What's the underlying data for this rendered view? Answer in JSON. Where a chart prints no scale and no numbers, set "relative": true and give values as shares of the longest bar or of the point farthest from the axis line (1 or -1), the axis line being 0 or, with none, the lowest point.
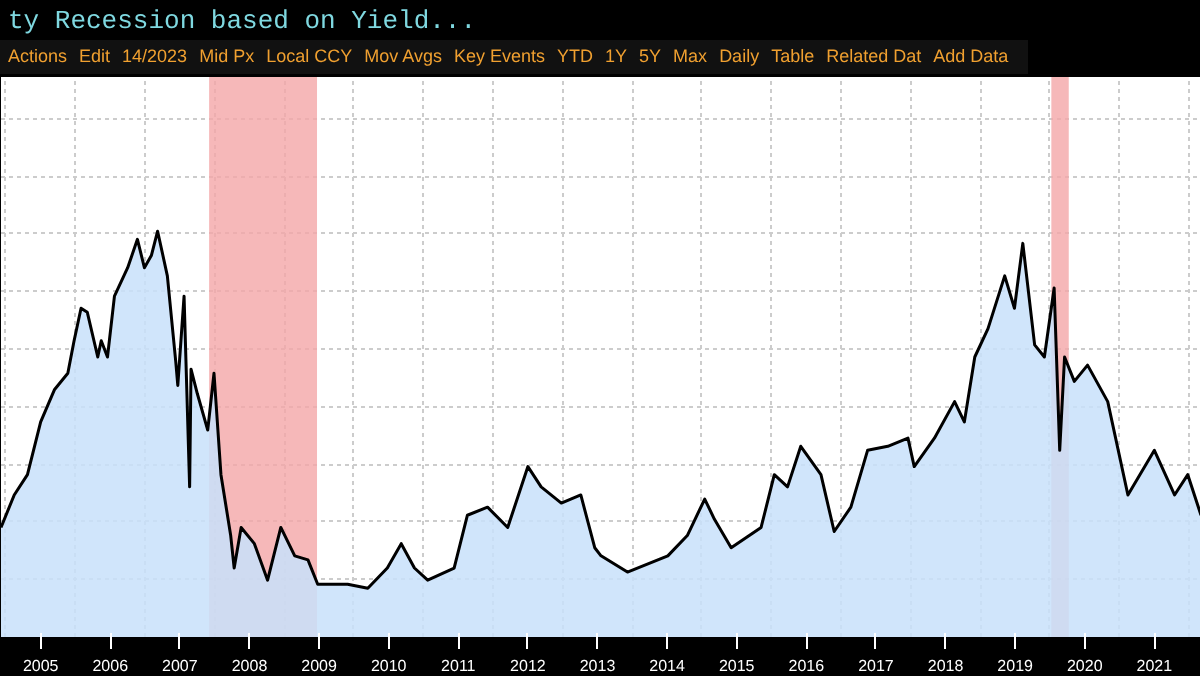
{
  "chart_data": {
    "type": "area",
    "title": "ty Recession based on Yield...",
    "relative": true,
    "annotations": [
      "Actions",
      "Edit",
      "14/2023",
      "Mid Px",
      "Local CCY",
      "Mov Avgs",
      "Key Events",
      "YTD",
      "1Y",
      "5Y",
      "Max",
      "Daily",
      "Table",
      "Related Dat",
      "Add Data"
    ],
    "xlim": [
      2004.93,
      2022.17
    ],
    "xticks": [
      {
        "value": 2005.5,
        "label": "2005"
      },
      {
        "value": 2006.5,
        "label": "2006"
      },
      {
        "value": 2007.5,
        "label": "2007"
      },
      {
        "value": 2008.5,
        "label": "2008"
      },
      {
        "value": 2009.5,
        "label": "2009"
      },
      {
        "value": 2010.5,
        "label": "2010"
      },
      {
        "value": 2011.5,
        "label": "2011"
      },
      {
        "value": 2012.5,
        "label": "2012"
      },
      {
        "value": 2013.5,
        "label": "2013"
      },
      {
        "value": 2014.5,
        "label": "2014"
      },
      {
        "value": 2015.5,
        "label": "2015"
      },
      {
        "value": 2016.5,
        "label": "2016"
      },
      {
        "value": 2017.5,
        "label": "2017"
      },
      {
        "value": 2018.5,
        "label": "2018"
      },
      {
        "value": 2019.5,
        "label": "2019"
      },
      {
        "value": 2020.5,
        "label": "2020"
      },
      {
        "value": 2021.5,
        "label": "2021"
      }
    ],
    "grid": true,
    "bands": [
      {
        "axis": "x",
        "from": 2007.92,
        "to": 2009.47,
        "color": "#f4a6a8"
      },
      {
        "axis": "x",
        "from": 2020.02,
        "to": 2020.27,
        "color": "#f4a6a8"
      }
    ],
    "series": [
      {
        "color": "#c8e1fa",
        "x": [
          2004.93,
          2005.12,
          2005.31,
          2005.5,
          2005.7,
          2005.89,
          2005.98,
          2006.08,
          2006.17,
          2006.32,
          2006.37,
          2006.46,
          2006.56,
          2006.75,
          2006.89,
          2006.99,
          2007.09,
          2007.18,
          2007.32,
          2007.44,
          2007.47,
          2007.56,
          2007.64,
          2007.66,
          2007.75,
          2007.9,
          2007.99,
          2008.09,
          2008.23,
          2008.28,
          2008.38,
          2008.57,
          2008.76,
          2008.95,
          2009.15,
          2009.34,
          2009.48,
          2009.91,
          2010.2,
          2010.48,
          2010.68,
          2010.87,
          2011.06,
          2011.44,
          2011.63,
          2011.92,
          2012.21,
          2012.5,
          2012.69,
          2012.98,
          2013.26,
          2013.46,
          2013.55,
          2013.93,
          2014.51,
          2014.79,
          2015.04,
          2015.18,
          2015.42,
          2015.85,
          2016.04,
          2016.23,
          2016.42,
          2016.71,
          2016.9,
          2017.14,
          2017.38,
          2017.67,
          2017.96,
          2018.05,
          2018.34,
          2018.63,
          2018.77,
          2018.92,
          2019.11,
          2019.35,
          2019.49,
          2019.61,
          2019.78,
          2019.92,
          2020.06,
          2020.14,
          2020.21,
          2020.35,
          2020.54,
          2020.83,
          2021.12,
          2021.5,
          2021.79,
          2021.98,
          2022.17
        ],
        "values": [
          0.27,
          0.35,
          0.4,
          0.53,
          0.61,
          0.65,
          0.73,
          0.81,
          0.8,
          0.69,
          0.73,
          0.69,
          0.84,
          0.91,
          0.98,
          0.91,
          0.94,
          1.0,
          0.89,
          0.68,
          0.62,
          0.84,
          0.37,
          0.66,
          0.6,
          0.51,
          0.65,
          0.4,
          0.25,
          0.17,
          0.27,
          0.23,
          0.14,
          0.27,
          0.2,
          0.19,
          0.13,
          0.13,
          0.12,
          0.17,
          0.23,
          0.17,
          0.14,
          0.17,
          0.3,
          0.32,
          0.27,
          0.42,
          0.37,
          0.33,
          0.35,
          0.22,
          0.2,
          0.16,
          0.2,
          0.25,
          0.34,
          0.29,
          0.22,
          0.27,
          0.4,
          0.37,
          0.47,
          0.4,
          0.26,
          0.32,
          0.46,
          0.47,
          0.49,
          0.42,
          0.49,
          0.58,
          0.53,
          0.69,
          0.76,
          0.89,
          0.81,
          0.97,
          0.72,
          0.69,
          0.86,
          0.46,
          0.69,
          0.63,
          0.67,
          0.58,
          0.35,
          0.46,
          0.35,
          0.4,
          0.3
        ]
      }
    ]
  }
}
